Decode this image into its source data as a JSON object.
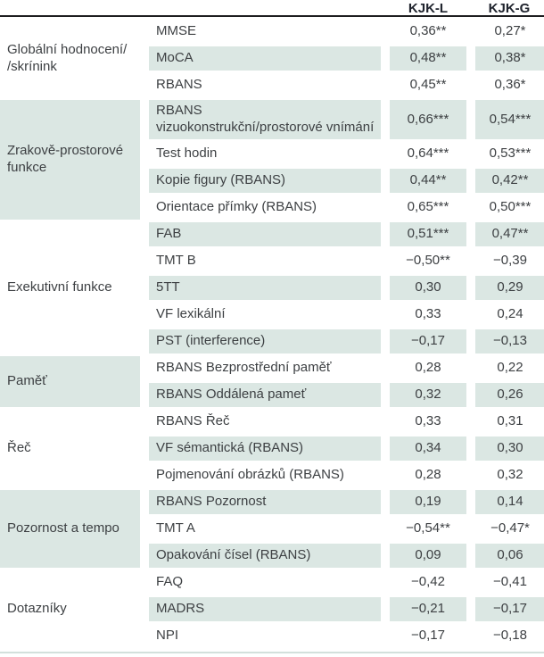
{
  "chart_data": {
    "type": "table",
    "columns": [
      "KJK-L",
      "KJK-G"
    ],
    "groups": [
      {
        "label": "Globální hodnocení/\n/skrínink",
        "rows": [
          {
            "test": "MMSE",
            "kjk_l": "0,36**",
            "kjk_g": "0,27*"
          },
          {
            "test": "MoCA",
            "kjk_l": "0,48**",
            "kjk_g": "0,38*"
          },
          {
            "test": "RBANS",
            "kjk_l": "0,45**",
            "kjk_g": "0,36*"
          }
        ]
      },
      {
        "label": "Zrakově-prostorové\nfunkce",
        "rows": [
          {
            "test": "RBANS\nvizuokonstrukční/prostorové vnímání",
            "kjk_l": "0,66***",
            "kjk_g": "0,54***"
          },
          {
            "test": "Test hodin",
            "kjk_l": "0,64***",
            "kjk_g": "0,53***"
          },
          {
            "test": "Kopie figury (RBANS)",
            "kjk_l": "0,44**",
            "kjk_g": "0,42**"
          },
          {
            "test": "Orientace přímky (RBANS)",
            "kjk_l": "0,65***",
            "kjk_g": "0,50***"
          }
        ]
      },
      {
        "label": "Exekutivní funkce",
        "rows": [
          {
            "test": "FAB",
            "kjk_l": "0,51***",
            "kjk_g": "0,47**"
          },
          {
            "test": "TMT B",
            "kjk_l": "−0,50**",
            "kjk_g": "−0,39"
          },
          {
            "test": "5TT",
            "kjk_l": "0,30",
            "kjk_g": "0,29"
          },
          {
            "test": "VF lexikální",
            "kjk_l": "0,33",
            "kjk_g": "0,24"
          },
          {
            "test": "PST (interference)",
            "kjk_l": "−0,17",
            "kjk_g": "−0,13"
          }
        ]
      },
      {
        "label": "Paměť",
        "rows": [
          {
            "test": "RBANS Bezprostřední paměť",
            "kjk_l": "0,28",
            "kjk_g": "0,22"
          },
          {
            "test": "RBANS Oddálená pameť",
            "kjk_l": "0,32",
            "kjk_g": "0,26"
          }
        ]
      },
      {
        "label": "Řeč",
        "rows": [
          {
            "test": "RBANS Řeč",
            "kjk_l": "0,33",
            "kjk_g": "0,31"
          },
          {
            "test": "VF sémantická (RBANS)",
            "kjk_l": "0,34",
            "kjk_g": "0,30"
          },
          {
            "test": "Pojmenování obrázků (RBANS)",
            "kjk_l": "0,28",
            "kjk_g": "0,32"
          }
        ]
      },
      {
        "label": "Pozornost a tempo",
        "rows": [
          {
            "test": "RBANS Pozornost",
            "kjk_l": "0,19",
            "kjk_g": "0,14"
          },
          {
            "test": "TMT A",
            "kjk_l": "−0,54**",
            "kjk_g": "−0,47*"
          },
          {
            "test": "Opakování čísel (RBANS)",
            "kjk_l": "0,09",
            "kjk_g": "0,06"
          }
        ]
      },
      {
        "label": "Dotazníky",
        "rows": [
          {
            "test": "FAQ",
            "kjk_l": "−0,42",
            "kjk_g": "−0,41"
          },
          {
            "test": "MADRS",
            "kjk_l": "−0,21",
            "kjk_g": "−0,17"
          },
          {
            "test": "NPI",
            "kjk_l": "−0,17",
            "kjk_g": "−0,18"
          }
        ]
      }
    ]
  },
  "colors": {
    "stripe": "#dbe7e3",
    "header_rule": "#1d1d1f",
    "bottom_rule": "#d3e0dc",
    "text": "#3d4043"
  }
}
